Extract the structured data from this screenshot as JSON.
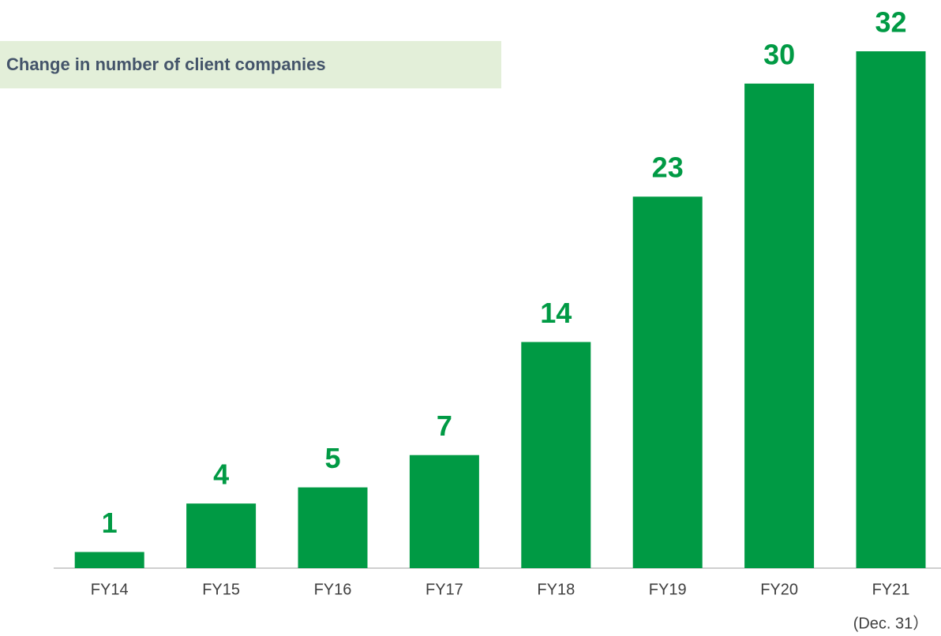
{
  "chart_data": {
    "type": "bar",
    "title": "Change in number of client companies",
    "categories": [
      "FY14",
      "FY15",
      "FY16",
      "FY17",
      "FY18",
      "FY19",
      "FY20",
      "FY21"
    ],
    "values": [
      1,
      4,
      5,
      7,
      14,
      23,
      30,
      32
    ],
    "annotations": [
      "(Dec. 31）"
    ],
    "color": "#009a44"
  }
}
